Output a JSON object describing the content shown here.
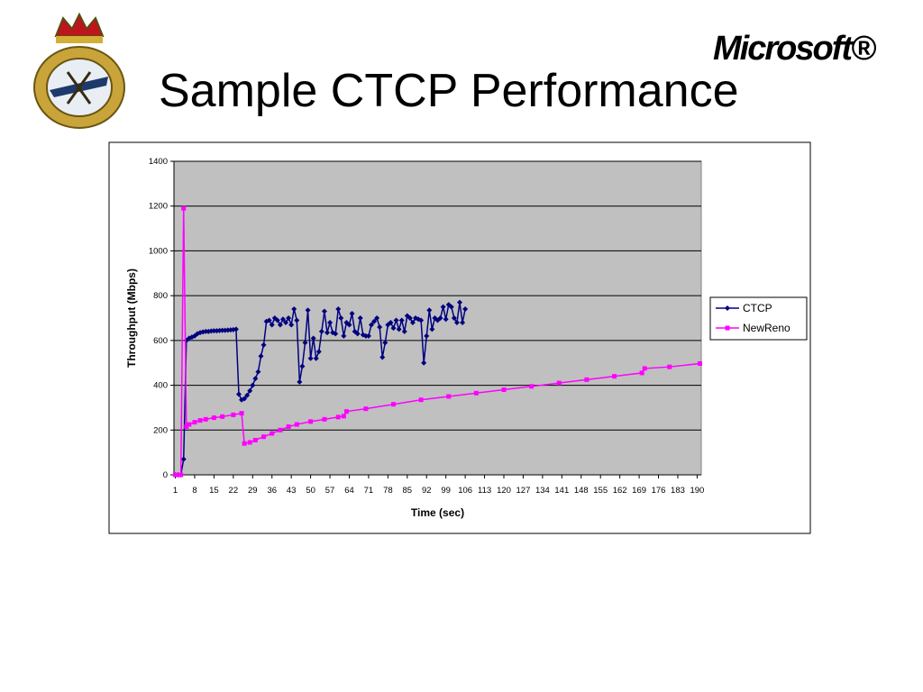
{
  "slide": {
    "title": "Sample CTCP Performance",
    "logo_text": "Microsoft®"
  },
  "chart_data": {
    "type": "line",
    "xlabel": "Time (sec)",
    "ylabel": "Throughput (Mbps)",
    "xlim": [
      0.5,
      191.5
    ],
    "xticks": [
      1,
      8,
      15,
      22,
      29,
      36,
      43,
      50,
      57,
      64,
      71,
      78,
      85,
      92,
      99,
      106,
      113,
      120,
      127,
      134,
      141,
      148,
      155,
      162,
      169,
      176,
      183,
      190
    ],
    "ylim": [
      0,
      1400
    ],
    "yticks": [
      0,
      200,
      400,
      600,
      800,
      1000,
      1200,
      1400
    ],
    "grid": true,
    "legend": "right",
    "series": [
      {
        "name": "CTCP",
        "color": "#000080",
        "marker": "diamond",
        "x": [
          1,
          2,
          3,
          4,
          5,
          6,
          7,
          8,
          9,
          10,
          11,
          12,
          13,
          14,
          15,
          16,
          17,
          18,
          19,
          20,
          21,
          22,
          23,
          24,
          25,
          26,
          27,
          28,
          29,
          30,
          31,
          32,
          33,
          34,
          35,
          36,
          37,
          38,
          39,
          40,
          41,
          42,
          43,
          44,
          45,
          46,
          47,
          48,
          49,
          50,
          51,
          52,
          53,
          54,
          55,
          56,
          57,
          58,
          59,
          60,
          61,
          62,
          63,
          64,
          65,
          66,
          67,
          68,
          69,
          70,
          71,
          72,
          73,
          74,
          75,
          76,
          77,
          78,
          79,
          80,
          81,
          82,
          83,
          84,
          85,
          86,
          87,
          88,
          89,
          90,
          91,
          92,
          93,
          94,
          95,
          96,
          97,
          98,
          99,
          100,
          101,
          102,
          103,
          104,
          105,
          106
        ],
        "values": [
          0,
          0,
          0,
          70,
          600,
          610,
          615,
          620,
          630,
          635,
          638,
          640,
          640,
          642,
          643,
          643,
          644,
          645,
          645,
          646,
          647,
          648,
          650,
          360,
          335,
          340,
          355,
          375,
          400,
          430,
          460,
          530,
          580,
          685,
          690,
          670,
          700,
          690,
          670,
          695,
          680,
          700,
          670,
          740,
          690,
          415,
          485,
          590,
          735,
          520,
          610,
          520,
          550,
          640,
          730,
          635,
          680,
          635,
          630,
          740,
          700,
          620,
          680,
          670,
          720,
          640,
          630,
          700,
          625,
          620,
          620,
          670,
          685,
          700,
          660,
          525,
          590,
          670,
          680,
          655,
          690,
          650,
          690,
          640,
          710,
          700,
          680,
          700,
          695,
          690,
          500,
          620,
          735,
          650,
          700,
          690,
          700,
          750,
          695,
          760,
          750,
          700,
          680,
          770,
          680,
          740
        ]
      },
      {
        "name": "NewReno",
        "color": "#ff00ff",
        "marker": "square",
        "x": [
          1,
          2,
          3,
          4,
          5,
          6,
          8,
          10,
          12,
          15,
          18,
          22,
          25,
          26,
          28,
          30,
          33,
          36,
          39,
          42,
          45,
          50,
          55,
          60,
          62,
          63,
          70,
          80,
          90,
          100,
          110,
          120,
          130,
          140,
          150,
          160,
          170,
          171,
          180,
          191
        ],
        "values": [
          0,
          0,
          0,
          1190,
          215,
          225,
          235,
          243,
          248,
          255,
          260,
          268,
          275,
          140,
          145,
          155,
          170,
          185,
          200,
          215,
          225,
          238,
          248,
          258,
          262,
          283,
          295,
          315,
          335,
          350,
          365,
          380,
          395,
          410,
          425,
          440,
          455,
          475,
          482,
          497
        ]
      }
    ]
  }
}
